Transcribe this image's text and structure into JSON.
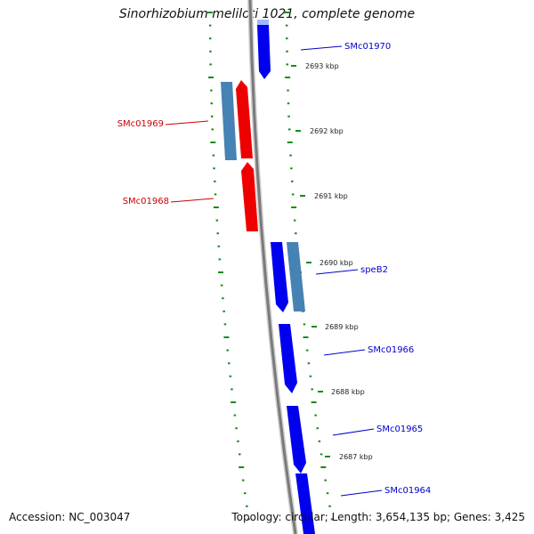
{
  "title": "Sinorhizobium meliloti 1021, complete genome",
  "footer": {
    "accession": "Accession: NC_003047",
    "summary": "Topology: circular; Length: 3,654,135 bp; Genes: 3,425"
  },
  "colors": {
    "backbone": "#808080",
    "forward_cds": "#0000ee",
    "reverse_cds": "#ee0000",
    "other_gene": "#4682b4",
    "dotted_track": "#1a8a1a",
    "forward_label": "#0000cc",
    "reverse_label": "#cc0000"
  },
  "scale": {
    "unit": "kbp",
    "ticks": [
      {
        "label": "2693 kbp"
      },
      {
        "label": "2692 kbp"
      },
      {
        "label": "2691 kbp"
      },
      {
        "label": "2690 kbp"
      },
      {
        "label": "2689 kbp"
      },
      {
        "label": "2688 kbp"
      },
      {
        "label": "2687 kbp"
      }
    ]
  },
  "genes": [
    {
      "name": "SMc01970",
      "strand": "forward"
    },
    {
      "name": "SMc01969",
      "strand": "reverse"
    },
    {
      "name": "SMc01968",
      "strand": "reverse"
    },
    {
      "name": "speB2",
      "strand": "forward"
    },
    {
      "name": "SMc01966",
      "strand": "forward"
    },
    {
      "name": "SMc01965",
      "strand": "forward"
    },
    {
      "name": "SMc01964",
      "strand": "forward"
    }
  ]
}
